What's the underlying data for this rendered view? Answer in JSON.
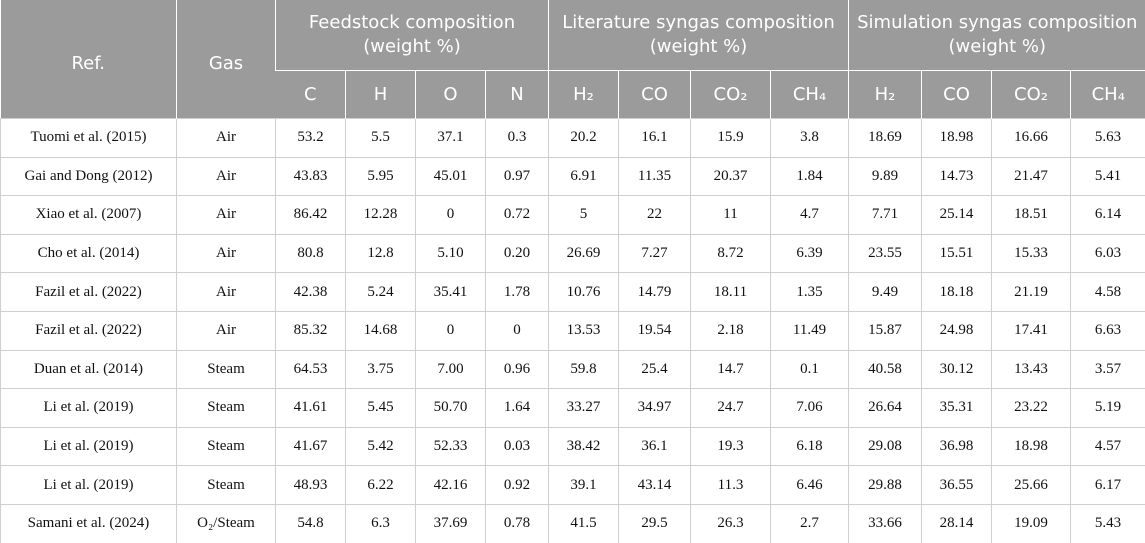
{
  "table": {
    "header": {
      "ref": "Ref.",
      "gas": "Gas",
      "groups": [
        "Feedstock composition (weight %)",
        "Literature syngas composition (weight %)",
        "Simulation syngas composition (weight %)"
      ],
      "columns": [
        "C",
        "H",
        "O",
        "N",
        "H₂",
        "CO",
        "CO₂",
        "CH₄",
        "H₂",
        "CO",
        "CO₂",
        "CH₄"
      ]
    },
    "rows": [
      [
        "Tuomi et al. (2015)",
        "Air",
        "53.2",
        "5.5",
        "37.1",
        "0.3",
        "20.2",
        "16.1",
        "15.9",
        "3.8",
        "18.69",
        "18.98",
        "16.66",
        "5.63"
      ],
      [
        "Gai and Dong (2012)",
        "Air",
        "43.83",
        "5.95",
        "45.01",
        "0.97",
        "6.91",
        "11.35",
        "20.37",
        "1.84",
        "9.89",
        "14.73",
        "21.47",
        "5.41"
      ],
      [
        "Xiao et al. (2007)",
        "Air",
        "86.42",
        "12.28",
        "0",
        "0.72",
        "5",
        "22",
        "11",
        "4.7",
        "7.71",
        "25.14",
        "18.51",
        "6.14"
      ],
      [
        "Cho et al. (2014)",
        "Air",
        "80.8",
        "12.8",
        "5.10",
        "0.20",
        "26.69",
        "7.27",
        "8.72",
        "6.39",
        "23.55",
        "15.51",
        "15.33",
        "6.03"
      ],
      [
        "Fazil et al. (2022)",
        "Air",
        "42.38",
        "5.24",
        "35.41",
        "1.78",
        "10.76",
        "14.79",
        "18.11",
        "1.35",
        "9.49",
        "18.18",
        "21.19",
        "4.58"
      ],
      [
        "Fazil et al. (2022)",
        "Air",
        "85.32",
        "14.68",
        "0",
        "0",
        "13.53",
        "19.54",
        "2.18",
        "11.49",
        "15.87",
        "24.98",
        "17.41",
        "6.63"
      ],
      [
        "Duan et al. (2014)",
        "Steam",
        "64.53",
        "3.75",
        "7.00",
        "0.96",
        "59.8",
        "25.4",
        "14.7",
        "0.1",
        "40.58",
        "30.12",
        "13.43",
        "3.57"
      ],
      [
        "Li et al. (2019)",
        "Steam",
        "41.61",
        "5.45",
        "50.70",
        "1.64",
        "33.27",
        "34.97",
        "24.7",
        "7.06",
        "26.64",
        "35.31",
        "23.22",
        "5.19"
      ],
      [
        "Li et al. (2019)",
        "Steam",
        "41.67",
        "5.42",
        "52.33",
        "0.03",
        "38.42",
        "36.1",
        "19.3",
        "6.18",
        "29.08",
        "36.98",
        "18.98",
        "4.57"
      ],
      [
        "Li et al. (2019)",
        "Steam",
        "48.93",
        "6.22",
        "42.16",
        "0.92",
        "39.1",
        "43.14",
        "11.3",
        "6.46",
        "29.88",
        "36.55",
        "25.66",
        "6.17"
      ],
      [
        "Samani et al. (2024)",
        "O₂/Steam",
        "54.8",
        "6.3",
        "37.69",
        "0.78",
        "41.5",
        "29.5",
        "26.3",
        "2.7",
        "33.66",
        "28.14",
        "19.09",
        "5.43"
      ]
    ]
  }
}
